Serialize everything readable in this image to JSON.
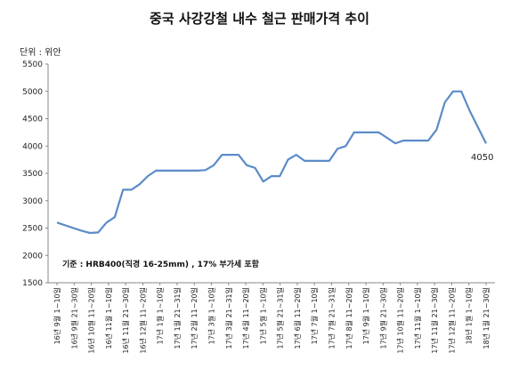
{
  "chart_data": {
    "type": "line",
    "title": "중국 사강강철 내수 철근 판매가격 추이",
    "unit_label": "단위 : 위안",
    "note": "기준 : HRB400(직경 16-25mm) , 17% 부가세 포함",
    "end_label": "4050",
    "ylim": [
      1500,
      5500
    ],
    "yticks": [
      1500,
      2000,
      2500,
      3000,
      3500,
      4000,
      4500,
      5000,
      5500
    ],
    "grid": false,
    "legend": "none",
    "line_color": "#5b8cc8",
    "x_tick_labels": [
      "16년 9월 1~10일",
      "16년 9월 21~30일",
      "16년 10월 11~20일",
      "16년 11월 1~10일",
      "16년 11월 21~30일",
      "16년 12월 11~20일",
      "17년 1월 1~10일",
      "17년 1월 21~31일",
      "17년 2월 11~20일",
      "17년 3월 1~10일",
      "17년 3월 21~31일",
      "17년 4월 11~20일",
      "17년 5월 1~10일",
      "17년 5월 21~31일",
      "17년 6월 11~20일",
      "17년 7월 1~10일",
      "17년 7월 21~31일",
      "17년 8월 11~20일",
      "17년 9월 1~10일",
      "17년 9월 21~30일",
      "17년 10월 11~20일",
      "17년 11월 1~10일",
      "17년 11월 21~30일",
      "17년 12월 11~20일",
      "18년 1월 1~10일",
      "18년 1월 21~30일"
    ],
    "values": [
      2600,
      2550,
      2500,
      2450,
      2410,
      2420,
      2600,
      2700,
      3200,
      3200,
      3300,
      3450,
      3550,
      3550,
      3550,
      3550,
      3550,
      3550,
      3560,
      3650,
      3840,
      3840,
      3840,
      3650,
      3600,
      3350,
      3450,
      3450,
      3750,
      3840,
      3730,
      3730,
      3730,
      3730,
      3950,
      4000,
      4250,
      4250,
      4250,
      4250,
      4150,
      4050,
      4100,
      4100,
      4100,
      4100,
      4300,
      4800,
      5000,
      5000,
      4650,
      4350,
      4050
    ]
  }
}
